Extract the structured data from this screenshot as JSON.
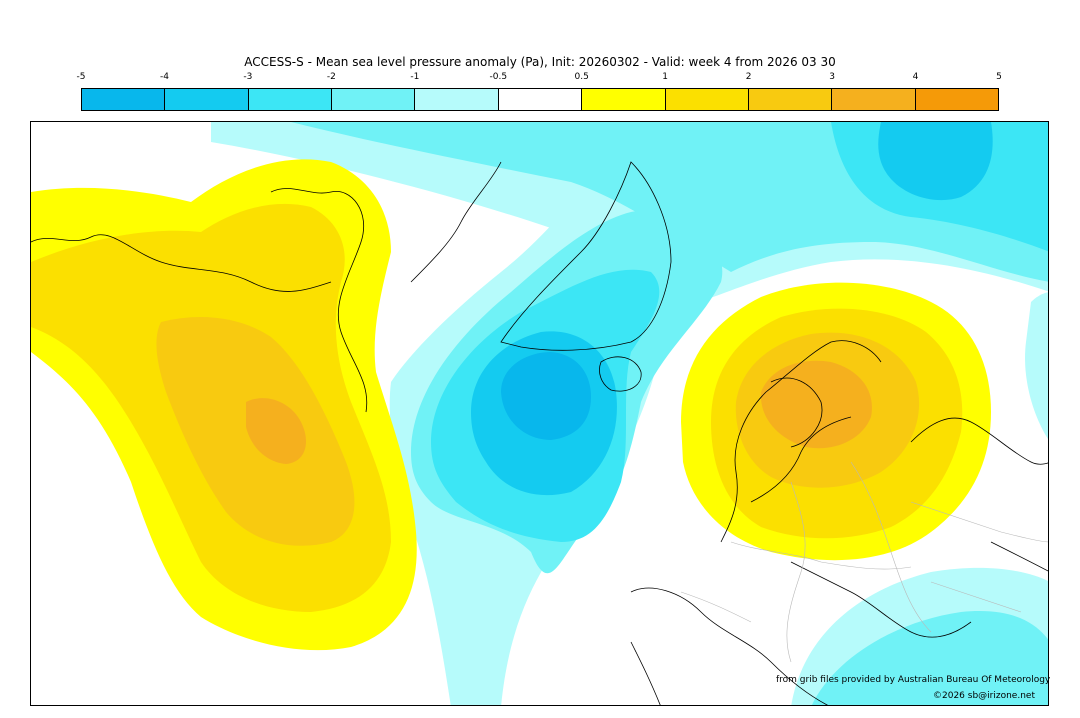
{
  "title": "ACCESS-S - Mean sea level pressure anomaly (Pa), Init: 20260302 - Valid: week 4 from 2026 03 30",
  "legend": {
    "ticks": [
      "-5",
      "-4",
      "-3",
      "-2",
      "-1",
      "-0.5",
      "0.5",
      "1",
      "2",
      "3",
      "4",
      "5"
    ],
    "colors": [
      "#08b7ec",
      "#14cbf0",
      "#3ce6f5",
      "#70f2f6",
      "#b6fbfb",
      "#ffffff",
      "#ffff00",
      "#fbe000",
      "#f8ca10",
      "#f5b01e",
      "#f59a08"
    ]
  },
  "credits": {
    "source": "from grib files provided by Australian Bureau Of Meteorology",
    "copyright": "©2026 sb@irizone.net"
  }
}
